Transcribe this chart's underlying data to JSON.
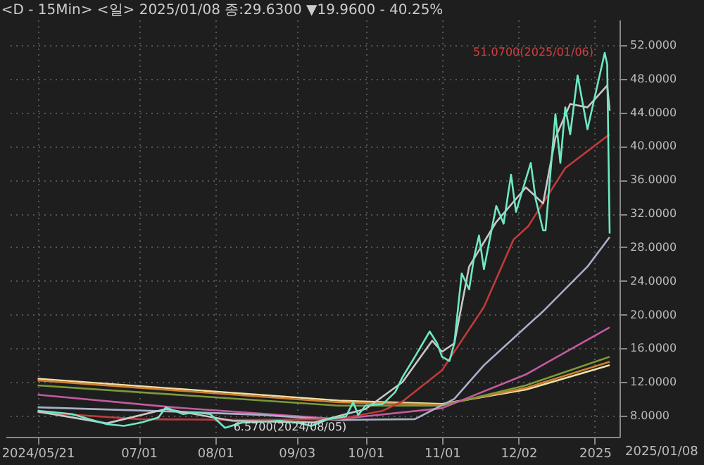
{
  "chart_data": {
    "type": "line",
    "title": "<D - 15Min> <일> 2025/01/08 종:29.6300 ▼19.9600 - 40.25%",
    "xlim": [
      "2024-05-08",
      "2025-01-12"
    ],
    "xticks": [
      {
        "value": "2024-05-21",
        "label": "2024/05/21"
      },
      {
        "value": "2024-07-01",
        "label": "07/01"
      },
      {
        "value": "2024-08-01",
        "label": "08/01"
      },
      {
        "value": "2024-09-03",
        "label": "09/03"
      },
      {
        "value": "2024-10-01",
        "label": "10/01"
      },
      {
        "value": "2024-11-01",
        "label": "11/01"
      },
      {
        "value": "2024-12-02",
        "label": "12/02"
      },
      {
        "value": "2025-01-02",
        "label": "2025"
      }
    ],
    "ylim": [
      5.5,
      55
    ],
    "yticks": [
      {
        "value": 8,
        "label": "8.0000"
      },
      {
        "value": 12,
        "label": "12.0000"
      },
      {
        "value": 16,
        "label": "16.0000"
      },
      {
        "value": 20,
        "label": "20.0000"
      },
      {
        "value": 24,
        "label": "24.0000"
      },
      {
        "value": 28,
        "label": "28.0000"
      },
      {
        "value": 32,
        "label": "32.0000"
      },
      {
        "value": 36,
        "label": "36.0000"
      },
      {
        "value": 40,
        "label": "40.0000"
      },
      {
        "value": 44,
        "label": "44.0000"
      },
      {
        "value": 48,
        "label": "48.0000"
      },
      {
        "value": 52,
        "label": "52.0000"
      }
    ],
    "grid": true,
    "legend": false,
    "line_style": "solid",
    "marker": "none",
    "series": [
      {
        "color": "#f0e0a8",
        "x": [
          "2024-05-21",
          "2024-09-20",
          "2024-11-01",
          "2024-12-05",
          "2025-01-08"
        ],
        "values": [
          12.4,
          9.8,
          9.4,
          11.1,
          14.0
        ]
      },
      {
        "color": "#d08030",
        "x": [
          "2024-05-21",
          "2024-09-20",
          "2024-11-01",
          "2024-12-05",
          "2025-01-08"
        ],
        "values": [
          12.2,
          9.6,
          9.3,
          11.3,
          14.4
        ]
      },
      {
        "color": "#7a9a3a",
        "x": [
          "2024-05-21",
          "2024-09-20",
          "2024-11-01",
          "2024-12-05",
          "2025-01-08"
        ],
        "values": [
          11.6,
          9.2,
          9.2,
          11.6,
          15.0
        ]
      },
      {
        "color": "#c45aa0",
        "x": [
          "2024-05-21",
          "2024-07-15",
          "2024-09-20",
          "2024-11-01",
          "2024-12-05",
          "2025-01-08"
        ],
        "values": [
          10.5,
          9.0,
          7.6,
          8.9,
          12.9,
          18.5
        ]
      },
      {
        "color": "#a8b0c8",
        "x": [
          "2024-05-21",
          "2024-07-15",
          "2024-08-20",
          "2024-09-20",
          "2024-10-21",
          "2024-11-06",
          "2024-11-18",
          "2024-12-12",
          "2024-12-30",
          "2025-01-08"
        ],
        "values": [
          9.0,
          8.5,
          8.1,
          7.5,
          7.6,
          10.0,
          14.0,
          20.4,
          25.7,
          29.2
        ]
      },
      {
        "color": "#c03a3a",
        "x": [
          "2024-05-21",
          "2024-07-01",
          "2024-08-15",
          "2024-09-20",
          "2024-10-08",
          "2024-10-16",
          "2024-11-01",
          "2024-11-18",
          "2024-11-30",
          "2024-12-06",
          "2024-12-21",
          "2025-01-08"
        ],
        "values": [
          8.4,
          7.6,
          7.5,
          7.6,
          8.6,
          9.7,
          13.4,
          20.9,
          28.9,
          30.5,
          37.4,
          41.4
        ]
      },
      {
        "color": "#c8c8c8",
        "x": [
          "2024-05-21",
          "2024-06-18",
          "2024-07-12",
          "2024-08-08",
          "2024-09-10",
          "2024-10-01",
          "2024-10-16",
          "2024-10-28",
          "2024-11-01",
          "2024-11-06",
          "2024-11-12",
          "2024-11-23",
          "2024-12-05",
          "2024-12-12",
          "2024-12-17",
          "2024-12-23",
          "2024-12-30",
          "2025-01-07",
          "2025-01-08"
        ],
        "values": [
          8.5,
          7.1,
          8.8,
          7.4,
          7.2,
          8.8,
          12.0,
          16.9,
          15.6,
          16.6,
          25.7,
          31.0,
          35.1,
          33.2,
          41.0,
          45.0,
          44.6,
          47.2,
          44.2
        ]
      },
      {
        "color": "#6ee8c4",
        "x": [
          "2024-05-21",
          "2024-05-28",
          "2024-06-04",
          "2024-06-11",
          "2024-06-18",
          "2024-06-25",
          "2024-07-02",
          "2024-07-09",
          "2024-07-12",
          "2024-07-19",
          "2024-07-24",
          "2024-07-30",
          "2024-08-05",
          "2024-08-12",
          "2024-08-20",
          "2024-08-27",
          "2024-09-03",
          "2024-09-09",
          "2024-09-16",
          "2024-09-23",
          "2024-09-26",
          "2024-09-28",
          "2024-10-01",
          "2024-10-08",
          "2024-10-13",
          "2024-10-16",
          "2024-10-21",
          "2024-10-27",
          "2024-10-30",
          "2024-11-01",
          "2024-11-04",
          "2024-11-06",
          "2024-11-09",
          "2024-11-12",
          "2024-11-14",
          "2024-11-16",
          "2024-11-18",
          "2024-11-20",
          "2024-11-23",
          "2024-11-26",
          "2024-11-29",
          "2024-12-01",
          "2024-12-07",
          "2024-12-09",
          "2024-12-12",
          "2024-12-13",
          "2024-12-17",
          "2024-12-19",
          "2024-12-21",
          "2024-12-23",
          "2024-12-26",
          "2024-12-30",
          "2025-01-06",
          "2025-01-07",
          "2025-01-08"
        ],
        "values": [
          8.6,
          8.4,
          8.2,
          7.6,
          7.0,
          6.8,
          7.2,
          7.8,
          9.0,
          8.2,
          8.4,
          8.2,
          6.57,
          7.2,
          7.3,
          7.4,
          7.2,
          6.8,
          7.6,
          7.9,
          9.6,
          8.1,
          9.2,
          9.4,
          10.8,
          12.6,
          15.0,
          18.0,
          16.6,
          15.0,
          14.5,
          16.6,
          24.9,
          23.0,
          26.8,
          29.4,
          25.4,
          28.4,
          32.9,
          30.8,
          36.6,
          32.2,
          38.0,
          33.7,
          30.0,
          30.0,
          43.8,
          38.0,
          44.6,
          41.4,
          48.4,
          42.0,
          51.07,
          49.7,
          29.63
        ]
      }
    ],
    "annotations": [
      {
        "text": "51.0700(2025/01/06)",
        "x": "2025-01-06",
        "y": 51.07
      },
      {
        "text": "6.5700(2024/08/05)",
        "x": "2024-08-05",
        "y": 6.57
      },
      "2025/01/08"
    ]
  }
}
